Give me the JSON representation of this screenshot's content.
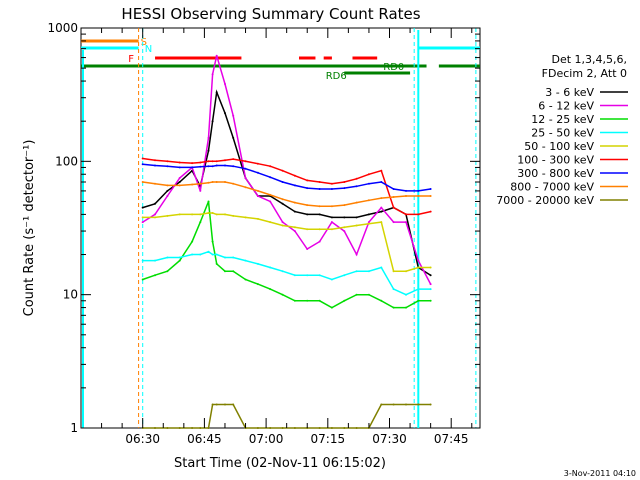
{
  "chart_data": {
    "type": "line",
    "title": "HESSI Observing Summary Count Rates",
    "xlabel": "Start Time (02-Nov-11 06:15:02)",
    "ylabel": "Count Rate (s⁻¹ detector⁻¹)",
    "y_scale": "log",
    "ylim": [
      1,
      1000
    ],
    "y_ticks": [
      1,
      10,
      100,
      1000
    ],
    "y_tick_labels": [
      "1",
      "10",
      "100",
      "1000"
    ],
    "xlim": [
      "06:15",
      "07:52"
    ],
    "x_tick_labels": [
      "06:30",
      "06:45",
      "07:00",
      "07:15",
      "07:30",
      "07:45"
    ],
    "x_ticks": [
      "06:30",
      "06:45",
      "07:00",
      "07:15",
      "07:30",
      "07:45"
    ],
    "legend_title": [
      "Det 1,3,4,5,6,",
      "FDecim 2, Att 0"
    ],
    "legend_placement": "right",
    "x": [
      "06:30",
      "06:33",
      "06:36",
      "06:39",
      "06:42",
      "06:44",
      "06:46",
      "06:47",
      "06:48",
      "06:50",
      "06:52",
      "06:55",
      "06:58",
      "07:01",
      "07:04",
      "07:07",
      "07:10",
      "07:13",
      "07:16",
      "07:19",
      "07:22",
      "07:25",
      "07:28",
      "07:31",
      "07:34",
      "07:37",
      "07:40"
    ],
    "series": [
      {
        "name": "3 - 6 keV",
        "color": "#000000",
        "values": [
          45,
          48,
          60,
          70,
          85,
          65,
          120,
          200,
          330,
          230,
          150,
          75,
          55,
          55,
          48,
          42,
          40,
          40,
          38,
          38,
          38,
          40,
          42,
          45,
          40,
          16,
          14
        ]
      },
      {
        "name": "6 - 12 keV",
        "color": "#e600e6",
        "values": [
          35,
          40,
          55,
          75,
          90,
          60,
          150,
          450,
          620,
          380,
          220,
          75,
          55,
          50,
          35,
          30,
          22,
          25,
          35,
          30,
          20,
          35,
          45,
          35,
          35,
          18,
          12
        ]
      },
      {
        "name": "12 - 25 keV",
        "color": "#00dd00",
        "values": [
          13,
          14,
          15,
          18,
          25,
          35,
          50,
          25,
          17,
          15,
          15,
          13,
          12,
          11,
          10,
          9,
          9,
          9,
          8,
          9,
          10,
          10,
          9,
          8,
          8,
          9,
          9
        ]
      },
      {
        "name": "25 - 50 keV",
        "color": "#00ffff",
        "values": [
          18,
          18,
          19,
          19,
          20,
          20,
          21,
          20,
          20,
          19,
          19,
          18,
          17,
          16,
          15,
          14,
          14,
          14,
          13,
          14,
          15,
          15,
          16,
          11,
          10,
          11,
          11
        ]
      },
      {
        "name": "50 - 100 keV",
        "color": "#d4d400",
        "values": [
          38,
          38,
          39,
          40,
          40,
          40,
          41,
          41,
          40,
          40,
          39,
          38,
          37,
          35,
          33,
          32,
          31,
          31,
          31,
          32,
          33,
          34,
          35,
          15,
          15,
          16,
          16
        ]
      },
      {
        "name": "100 - 300 keV",
        "color": "#ff0000",
        "values": [
          105,
          102,
          100,
          98,
          97,
          98,
          100,
          100,
          100,
          102,
          104,
          100,
          96,
          92,
          85,
          78,
          72,
          70,
          68,
          70,
          74,
          80,
          85,
          45,
          40,
          40,
          42
        ]
      },
      {
        "name": "300 - 800 keV",
        "color": "#0000ff",
        "values": [
          95,
          93,
          92,
          90,
          90,
          91,
          92,
          92,
          93,
          93,
          92,
          88,
          82,
          76,
          70,
          66,
          63,
          62,
          62,
          63,
          65,
          68,
          70,
          62,
          60,
          60,
          62
        ]
      },
      {
        "name": "800 - 7000 keV",
        "color": "#ff8000",
        "values": [
          70,
          68,
          66,
          66,
          67,
          68,
          69,
          70,
          70,
          70,
          68,
          64,
          60,
          56,
          52,
          49,
          47,
          46,
          46,
          47,
          49,
          51,
          53,
          54,
          55,
          55,
          55
        ]
      },
      {
        "name": "7000 - 20000 keV",
        "color": "#808000",
        "values": [
          1,
          1,
          1,
          1,
          1,
          1,
          1,
          1.5,
          1.5,
          1.5,
          1.5,
          1,
          1,
          1,
          1,
          1,
          1,
          1,
          1,
          1,
          1,
          1,
          1.5,
          1.5,
          1.5,
          1.5,
          1.5
        ]
      }
    ],
    "flag_labels": {
      "saa": "S",
      "night": "N",
      "flare": "F",
      "rd0": "RD0",
      "rd6": "RD6"
    },
    "flag_colors": {
      "saa": "#ff8000",
      "night": "#00ffff",
      "flare": "#ff0000",
      "rd0": "#008000",
      "rd6": "#008000"
    }
  },
  "footer_date": "3-Nov-2011 04:10"
}
